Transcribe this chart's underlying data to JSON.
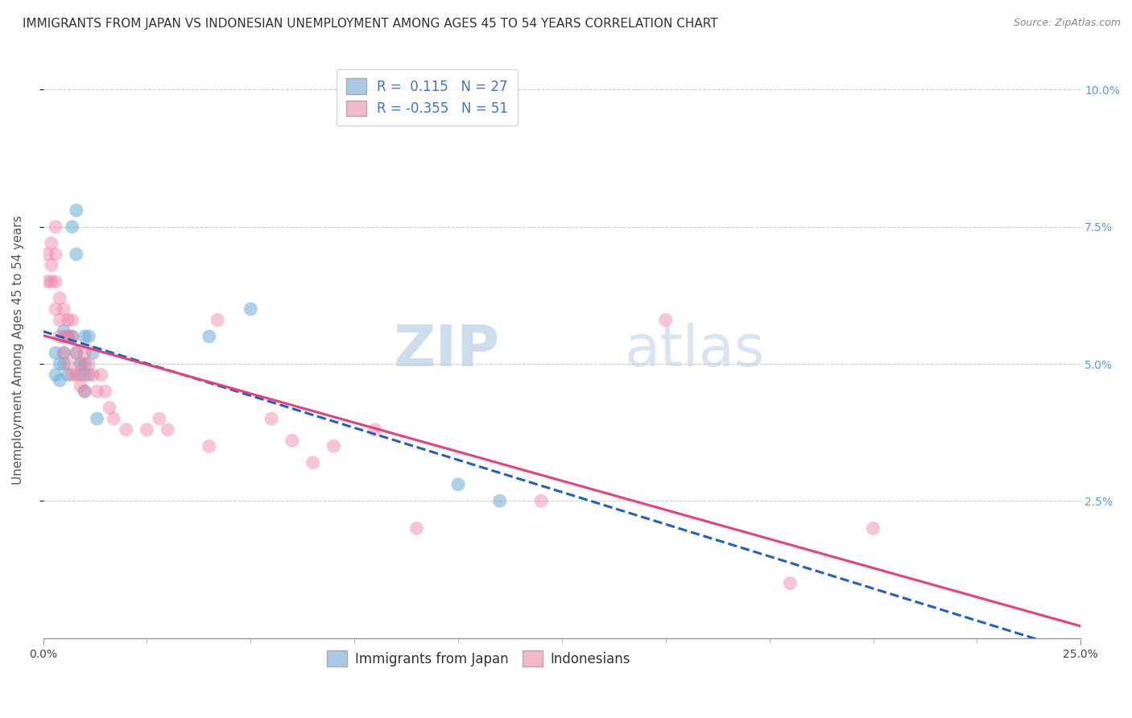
{
  "title": "IMMIGRANTS FROM JAPAN VS INDONESIAN UNEMPLOYMENT AMONG AGES 45 TO 54 YEARS CORRELATION CHART",
  "source": "Source: ZipAtlas.com",
  "ylabel": "Unemployment Among Ages 45 to 54 years",
  "xlim": [
    0.0,
    0.25
  ],
  "ylim": [
    0.0,
    0.105
  ],
  "legend1_label": "R =  0.115   N = 27",
  "legend2_label": "R = -0.355   N = 51",
  "legend1_color": "#aac8e8",
  "legend2_color": "#f4b8c8",
  "blue_scatter_color": "#6baed6",
  "pink_scatter_color": "#f080a0",
  "trendline_blue_color": "#2060c0",
  "trendline_pink_color": "#e8407a",
  "grid_color": "#cccccc",
  "japan_x": [
    0.003,
    0.003,
    0.004,
    0.004,
    0.005,
    0.005,
    0.005,
    0.006,
    0.006,
    0.007,
    0.007,
    0.008,
    0.008,
    0.008,
    0.009,
    0.009,
    0.01,
    0.01,
    0.01,
    0.011,
    0.011,
    0.012,
    0.013,
    0.04,
    0.05,
    0.1,
    0.11
  ],
  "japan_y": [
    0.052,
    0.048,
    0.05,
    0.047,
    0.056,
    0.052,
    0.05,
    0.055,
    0.048,
    0.075,
    0.055,
    0.078,
    0.07,
    0.052,
    0.05,
    0.048,
    0.055,
    0.05,
    0.045,
    0.055,
    0.048,
    0.052,
    0.04,
    0.055,
    0.06,
    0.028,
    0.025
  ],
  "indonesia_x": [
    0.001,
    0.001,
    0.002,
    0.002,
    0.002,
    0.003,
    0.003,
    0.003,
    0.003,
    0.004,
    0.004,
    0.004,
    0.005,
    0.005,
    0.005,
    0.006,
    0.006,
    0.006,
    0.007,
    0.007,
    0.007,
    0.008,
    0.008,
    0.009,
    0.009,
    0.01,
    0.01,
    0.01,
    0.011,
    0.012,
    0.013,
    0.014,
    0.015,
    0.016,
    0.017,
    0.02,
    0.025,
    0.028,
    0.03,
    0.04,
    0.042,
    0.055,
    0.06,
    0.065,
    0.07,
    0.08,
    0.09,
    0.12,
    0.15,
    0.18,
    0.2
  ],
  "indonesia_y": [
    0.065,
    0.07,
    0.068,
    0.072,
    0.065,
    0.065,
    0.06,
    0.07,
    0.075,
    0.062,
    0.058,
    0.055,
    0.06,
    0.055,
    0.052,
    0.058,
    0.055,
    0.05,
    0.058,
    0.055,
    0.048,
    0.052,
    0.048,
    0.05,
    0.046,
    0.052,
    0.048,
    0.045,
    0.05,
    0.048,
    0.045,
    0.048,
    0.045,
    0.042,
    0.04,
    0.038,
    0.038,
    0.04,
    0.038,
    0.035,
    0.058,
    0.04,
    0.036,
    0.032,
    0.035,
    0.038,
    0.02,
    0.025,
    0.058,
    0.01,
    0.02
  ],
  "title_fontsize": 11,
  "source_fontsize": 9,
  "axis_label_fontsize": 11,
  "tick_fontsize": 10,
  "legend_fontsize": 12
}
